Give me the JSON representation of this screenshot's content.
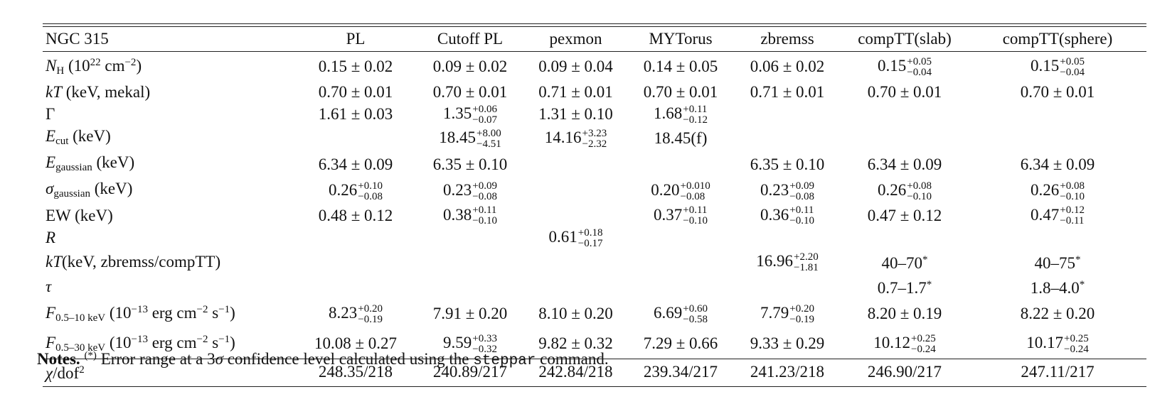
{
  "table": {
    "columns": [
      "NGC 315",
      "PL",
      "Cutoff PL",
      "pexmon",
      "MYTorus",
      "zbremss",
      "compTT(slab)",
      "compTT(sphere)"
    ],
    "rows": [
      {
        "label": {
          "main": "N",
          "sub": "H",
          "rest": " (10",
          "sup": "22",
          "tail": " cm",
          "sup2": "−2",
          "end": ")"
        },
        "cells": [
          {
            "v": "0.15 ± 0.02"
          },
          {
            "v": "0.09 ± 0.02"
          },
          {
            "v": "0.09 ± 0.04"
          },
          {
            "v": "0.14 ± 0.05"
          },
          {
            "v": "0.06 ± 0.02"
          },
          {
            "v": "0.15",
            "up": "+0.05",
            "lo": "−0.04"
          },
          {
            "v": "0.15",
            "up": "+0.05",
            "lo": "−0.04"
          }
        ]
      },
      {
        "label": {
          "main": "kT",
          "rest": " (keV, mekal)"
        },
        "cells": [
          {
            "v": "0.70 ± 0.01"
          },
          {
            "v": "0.70 ± 0.01"
          },
          {
            "v": "0.71 ± 0.01"
          },
          {
            "v": "0.70 ± 0.01"
          },
          {
            "v": "0.71 ± 0.01"
          },
          {
            "v": "0.70 ± 0.01"
          },
          {
            "v": "0.70 ± 0.01"
          }
        ]
      },
      {
        "label": {
          "plain": "Γ"
        },
        "cells": [
          {
            "v": "1.61 ± 0.03"
          },
          {
            "v": "1.35",
            "up": "+0.06",
            "lo": "−0.07"
          },
          {
            "v": "1.31 ± 0.10"
          },
          {
            "v": "1.68",
            "up": "+0.11",
            "lo": "−0.12"
          },
          {
            "v": ""
          },
          {
            "v": ""
          },
          {
            "v": ""
          }
        ]
      },
      {
        "label": {
          "main": "E",
          "sub": "cut",
          "rest": " (keV)"
        },
        "cells": [
          {
            "v": ""
          },
          {
            "v": "18.45",
            "up": "+8.00",
            "lo": "−4.51"
          },
          {
            "v": "14.16",
            "up": "+3.23",
            "lo": "−2.32"
          },
          {
            "v": "18.45(f)"
          },
          {
            "v": ""
          },
          {
            "v": ""
          },
          {
            "v": ""
          }
        ]
      },
      {
        "label": {
          "main": "E",
          "sub": "gaussian",
          "rest": " (keV)"
        },
        "cells": [
          {
            "v": "6.34 ± 0.09"
          },
          {
            "v": "6.35 ± 0.10"
          },
          {
            "v": ""
          },
          {
            "v": ""
          },
          {
            "v": "6.35 ± 0.10"
          },
          {
            "v": "6.34 ± 0.09"
          },
          {
            "v": "6.34 ± 0.09"
          }
        ]
      },
      {
        "label": {
          "main": "σ",
          "sub": "gaussian",
          "rest": " (keV)"
        },
        "cells": [
          {
            "v": "0.26",
            "up": "+0.10",
            "lo": "−0.08"
          },
          {
            "v": "0.23",
            "up": "+0.09",
            "lo": "−0.08"
          },
          {
            "v": ""
          },
          {
            "v": "0.20",
            "up": "+0.010",
            "lo": "−0.08"
          },
          {
            "v": "0.23",
            "up": "+0.09",
            "lo": "−0.08"
          },
          {
            "v": "0.26",
            "up": "+0.08",
            "lo": "−0.10"
          },
          {
            "v": "0.26",
            "up": "+0.08",
            "lo": "−0.10"
          }
        ]
      },
      {
        "label": {
          "plain": "EW (keV)"
        },
        "cells": [
          {
            "v": "0.48 ± 0.12"
          },
          {
            "v": "0.38",
            "up": "+0.11",
            "lo": "−0.10"
          },
          {
            "v": ""
          },
          {
            "v": "0.37",
            "up": "+0.11",
            "lo": "−0.10"
          },
          {
            "v": "0.36",
            "up": "+0.11",
            "lo": "−0.10"
          },
          {
            "v": "0.47 ± 0.12"
          },
          {
            "v": "0.47",
            "up": "+0.12",
            "lo": "−0.11"
          }
        ]
      },
      {
        "label": {
          "main": "R"
        },
        "cells": [
          {
            "v": ""
          },
          {
            "v": ""
          },
          {
            "v": "0.61",
            "up": "+0.18",
            "lo": "−0.17"
          },
          {
            "v": ""
          },
          {
            "v": ""
          },
          {
            "v": ""
          },
          {
            "v": ""
          }
        ]
      },
      {
        "label": {
          "main": "kT",
          "rest": "(keV, zbremss/compTT)"
        },
        "cells": [
          {
            "v": ""
          },
          {
            "v": ""
          },
          {
            "v": ""
          },
          {
            "v": ""
          },
          {
            "v": "16.96",
            "up": "+2.20",
            "lo": "−1.81"
          },
          {
            "v": "40–70",
            "star": "*"
          },
          {
            "v": "40–75",
            "star": "*"
          }
        ]
      },
      {
        "label": {
          "main": "τ"
        },
        "cells": [
          {
            "v": ""
          },
          {
            "v": ""
          },
          {
            "v": ""
          },
          {
            "v": ""
          },
          {
            "v": ""
          },
          {
            "v": "0.7–1.7",
            "star": "*"
          },
          {
            "v": "1.8–4.0",
            "star": "*"
          }
        ]
      },
      {
        "label": {
          "main": "F",
          "sub": "0.5–10 keV",
          "rest": " (10",
          "sup": "−13",
          "tail": " erg cm",
          "sup2": "−2",
          "tail2": " s",
          "sup3": "−1",
          "end": ")"
        },
        "cells": [
          {
            "v": "8.23",
            "up": "+0.20",
            "lo": "−0.19"
          },
          {
            "v": "7.91 ± 0.20"
          },
          {
            "v": "8.10 ± 0.20"
          },
          {
            "v": "6.69",
            "up": "+0.60",
            "lo": "−0.58"
          },
          {
            "v": "7.79",
            "up": "+0.20",
            "lo": "−0.19"
          },
          {
            "v": "8.20 ± 0.19"
          },
          {
            "v": "8.22 ± 0.20"
          }
        ]
      },
      {
        "label": {
          "main": "F",
          "sub": "0.5–30 keV",
          "rest": " (10",
          "sup": "−13",
          "tail": " erg cm",
          "sup2": "−2",
          "tail2": " s",
          "sup3": "−1",
          "end": ")"
        },
        "cells": [
          {
            "v": "10.08 ± 0.27"
          },
          {
            "v": "9.59",
            "up": "+0.33",
            "lo": "−0.32"
          },
          {
            "v": "9.82 ± 0.32"
          },
          {
            "v": "7.29 ± 0.66"
          },
          {
            "v": "9.33 ± 0.29"
          },
          {
            "v": "10.12",
            "up": "+0.25",
            "lo": "−0.24"
          },
          {
            "v": "10.17",
            "up": "+0.25",
            "lo": "−0.24"
          }
        ]
      }
    ],
    "last_row": {
      "label": {
        "main": "χ",
        "sup": "2",
        "rest": "/dof"
      },
      "cells": [
        "248.35/218",
        "240.89/217",
        "242.84/218",
        "239.34/217",
        "241.23/218",
        "246.90/217",
        "247.11/217"
      ]
    }
  },
  "notes": {
    "bold": "Notes.",
    "marker": "(*)",
    "text_before": " Error range at a 3",
    "sigma": "σ",
    "text_mid": " confidence level calculated using the ",
    "command": "steppar",
    "text_after": " command."
  }
}
